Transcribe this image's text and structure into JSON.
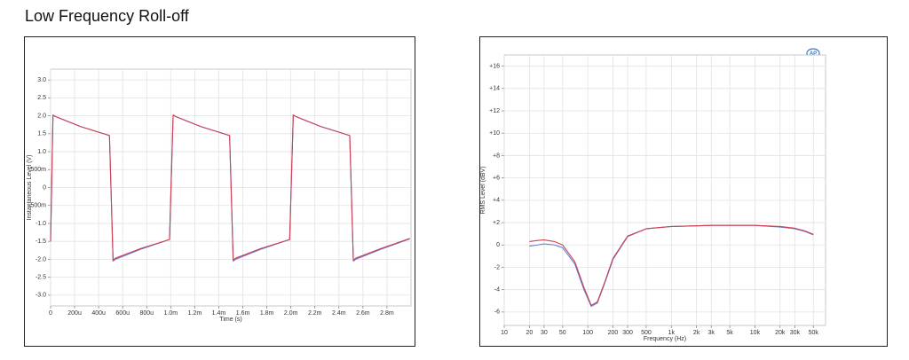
{
  "title": "Low Frequency Roll-off",
  "chart_data": [
    {
      "type": "line",
      "ylabel": "Instantaneous Level (V)",
      "xlabel": "Time (s)",
      "xlim": [
        0,
        0.003
      ],
      "ylim": [
        -3.3,
        3.3
      ],
      "xticks": [
        0,
        {
          "value": 0.0002,
          "label": "200u"
        },
        {
          "value": 0.0004,
          "label": "400u"
        },
        {
          "value": 0.0006,
          "label": "600u"
        },
        {
          "value": 0.0008,
          "label": "800u"
        },
        {
          "value": 0.001,
          "label": "1.0m"
        },
        {
          "value": 0.0012,
          "label": "1.2m"
        },
        {
          "value": 0.0014,
          "label": "1.4m"
        },
        {
          "value": 0.0016,
          "label": "1.6m"
        },
        {
          "value": 0.0018,
          "label": "1.8m"
        },
        {
          "value": 0.002,
          "label": "2.0m"
        },
        {
          "value": 0.0022,
          "label": "2.2m"
        },
        {
          "value": 0.0024,
          "label": "2.4m"
        },
        {
          "value": 0.0026,
          "label": "2.6m"
        },
        {
          "value": 0.0028,
          "label": "2.8m"
        }
      ],
      "yticks": [
        {
          "value": 3,
          "label": "3.0"
        },
        2.5,
        {
          "value": 2,
          "label": "2.0"
        },
        1.5,
        {
          "value": 1,
          "label": "1.0"
        },
        {
          "value": 0.5,
          "label": "500m"
        },
        0,
        {
          "value": -0.5,
          "label": "-500m"
        },
        {
          "value": -1,
          "label": "-1.0"
        },
        -1.5,
        {
          "value": -2,
          "label": "-2.0"
        },
        -2.5,
        {
          "value": -3,
          "label": "-3.0"
        }
      ],
      "grid": true,
      "x": [
        0,
        2e-05,
        4e-05,
        0.00025,
        0.00049,
        0.00052,
        0.00054,
        0.00075,
        0.00099,
        0.00102,
        0.00104,
        0.00125,
        0.00149,
        0.00152,
        0.00154,
        0.00175,
        0.00199,
        0.00202,
        0.00204,
        0.00225,
        0.00249,
        0.00252,
        0.00254,
        0.00275,
        0.00299
      ],
      "series": [
        {
          "color": "#5a7bd8",
          "values": [
            -1.5,
            2.02,
            1.98,
            1.7,
            1.45,
            -2.05,
            -2.0,
            -1.72,
            -1.45,
            2.02,
            1.98,
            1.7,
            1.45,
            -2.05,
            -2.0,
            -1.72,
            -1.45,
            2.02,
            1.98,
            1.7,
            1.45,
            -2.05,
            -2.0,
            -1.72,
            -1.43
          ]
        },
        {
          "color": "#d0404f",
          "values": [
            -1.5,
            2.02,
            1.98,
            1.7,
            1.45,
            -2.02,
            -1.97,
            -1.7,
            -1.45,
            2.02,
            1.98,
            1.7,
            1.45,
            -2.02,
            -1.97,
            -1.7,
            -1.45,
            2.02,
            1.98,
            1.7,
            1.45,
            -2.02,
            -1.97,
            -1.7,
            -1.42
          ]
        }
      ]
    },
    {
      "type": "line",
      "ylabel": "RMS Level (dBV)",
      "xlabel": "Frequency (Hz)",
      "xscale": "log",
      "xlim": [
        10,
        70000
      ],
      "ylim": [
        -7.2,
        17
      ],
      "xticks": [
        10,
        20,
        30,
        50,
        100,
        200,
        300,
        500,
        {
          "value": 1000,
          "label": "1k"
        },
        {
          "value": 2000,
          "label": "2k"
        },
        {
          "value": 3000,
          "label": "3k"
        },
        {
          "value": 5000,
          "label": "5k"
        },
        {
          "value": 10000,
          "label": "10k"
        },
        {
          "value": 20000,
          "label": "20k"
        },
        {
          "value": 30000,
          "label": "30k"
        },
        {
          "value": 50000,
          "label": "50k"
        }
      ],
      "yticks": [
        {
          "value": 16,
          "label": "+16"
        },
        {
          "value": 14,
          "label": "+14"
        },
        {
          "value": 12,
          "label": "+12"
        },
        {
          "value": 10,
          "label": "+10"
        },
        {
          "value": 8,
          "label": "+8"
        },
        {
          "value": 6,
          "label": "+6"
        },
        {
          "value": 4,
          "label": "+4"
        },
        {
          "value": 2,
          "label": "+2"
        },
        0,
        -2,
        -4,
        -6
      ],
      "grid": true,
      "x": [
        20,
        25,
        30,
        40,
        50,
        70,
        90,
        110,
        130,
        160,
        200,
        300,
        500,
        1000,
        3000,
        10000,
        20000,
        30000,
        40000,
        50000
      ],
      "series": [
        {
          "color": "#5a7bd8",
          "values": [
            -0.1,
            0,
            0.1,
            0,
            -0.25,
            -1.7,
            -4,
            -5.5,
            -5.2,
            -3.4,
            -1.3,
            0.75,
            1.45,
            1.65,
            1.75,
            1.75,
            1.6,
            1.45,
            1.2,
            0.9
          ]
        },
        {
          "color": "#d0404f",
          "values": [
            0.3,
            0.4,
            0.45,
            0.3,
            0,
            -1.5,
            -3.8,
            -5.4,
            -5.1,
            -3.3,
            -1.2,
            0.8,
            1.45,
            1.65,
            1.75,
            1.75,
            1.65,
            1.5,
            1.25,
            0.95
          ]
        }
      ]
    }
  ]
}
